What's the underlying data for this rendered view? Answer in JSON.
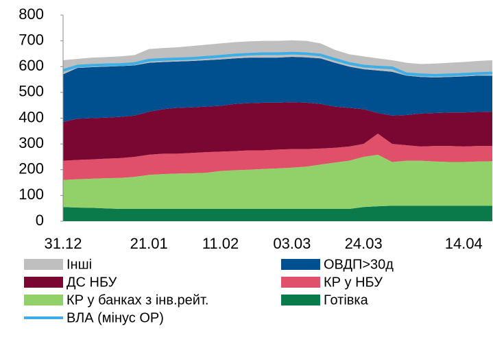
{
  "chart_data": {
    "type": "area",
    "categories": [
      "31.12",
      null,
      null,
      null,
      null,
      null,
      "21.01",
      null,
      null,
      null,
      null,
      "11.02",
      null,
      null,
      null,
      null,
      "03.03",
      null,
      null,
      null,
      null,
      "24.03",
      null,
      null,
      null,
      null,
      null,
      null,
      "14.04",
      null,
      null
    ],
    "series": [
      {
        "name": "Інші",
        "color": "#bfbfbf",
        "values": [
          55,
          35,
          37,
          37,
          38,
          40,
          53,
          54,
          55,
          58,
          60,
          62,
          63,
          63,
          65,
          65,
          64,
          64,
          58,
          50,
          48,
          50,
          47,
          45,
          50,
          50,
          54,
          55,
          56,
          57,
          60
        ]
      },
      {
        "name": "ОВДП>30д",
        "color": "#00508f",
        "values": [
          185,
          197,
          198,
          198,
          197,
          195,
          190,
          183,
          180,
          180,
          180,
          180,
          177,
          177,
          175,
          175,
          176,
          176,
          177,
          170,
          160,
          155,
          165,
          170,
          153,
          142,
          138,
          138,
          140,
          141,
          140
        ]
      },
      {
        "name": "ДС НБУ",
        "color": "#7a0632",
        "values": [
          150,
          160,
          160,
          159,
          160,
          160,
          167,
          173,
          178,
          177,
          177,
          178,
          183,
          183,
          185,
          182,
          182,
          180,
          173,
          160,
          150,
          135,
          80,
          110,
          117,
          128,
          128,
          130,
          132,
          132,
          133
        ]
      },
      {
        "name": "КР у НБУ",
        "color": "#e0506a",
        "values": [
          75,
          75,
          75,
          76,
          77,
          78,
          78,
          79,
          77,
          79,
          80,
          75,
          74,
          75,
          72,
          73,
          72,
          68,
          62,
          57,
          55,
          50,
          82,
          70,
          60,
          55,
          60,
          62,
          60,
          60,
          59
        ]
      },
      {
        "name": "КР у банках з інв.рейт.",
        "color": "#92d06a",
        "values": [
          105,
          110,
          113,
          117,
          120,
          124,
          132,
          135,
          137,
          138,
          140,
          147,
          150,
          152,
          155,
          157,
          160,
          164,
          172,
          180,
          187,
          195,
          200,
          170,
          175,
          175,
          172,
          170,
          170,
          172,
          173
        ]
      },
      {
        "name": "Готівка",
        "color": "#0b7a4b",
        "values": [
          55,
          53,
          52,
          50,
          48,
          48,
          48,
          48,
          48,
          48,
          48,
          48,
          48,
          48,
          48,
          48,
          48,
          48,
          48,
          48,
          48,
          55,
          58,
          60,
          60,
          60,
          60,
          60,
          60,
          60,
          60
        ]
      },
      {
        "name": "ВЛА (мінус ОР)",
        "color": "#3eaee6",
        "style": "line",
        "values": [
          585,
          602,
          605,
          607,
          608,
          612,
          625,
          628,
          630,
          632,
          636,
          640,
          645,
          648,
          650,
          650,
          652,
          650,
          645,
          628,
          612,
          602,
          598,
          595,
          572,
          568,
          566,
          568,
          570,
          573,
          575
        ]
      }
    ],
    "ylim": [
      0,
      800
    ],
    "yticks": [
      0,
      100,
      200,
      300,
      400,
      500,
      600,
      700,
      800
    ],
    "grid": false
  }
}
